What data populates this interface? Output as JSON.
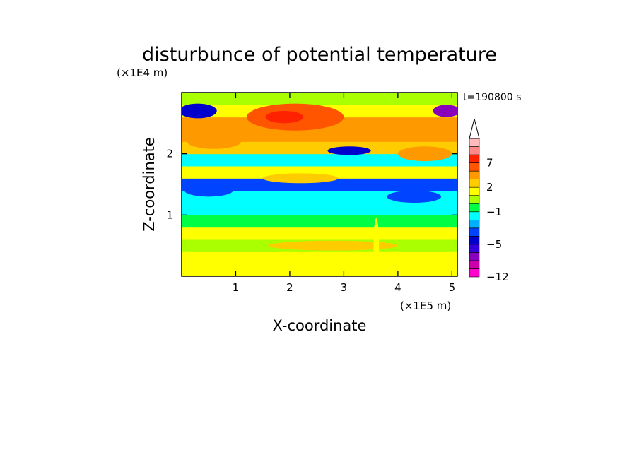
{
  "chart_data": {
    "type": "heatmap",
    "title": "disturbunce of potential temperature",
    "xlabel": "X-coordinate",
    "ylabel": "Z-coordinate",
    "x_unit": "(×1E5 m)",
    "y_unit": "(×1E4 m)",
    "time_label": "t=190800 s",
    "xlim": [
      0,
      5.1
    ],
    "ylim": [
      0,
      3.0
    ],
    "x_ticks": [
      1,
      2,
      3,
      4,
      5
    ],
    "x_tick_labels": [
      "1",
      "2",
      "3",
      "4",
      "5"
    ],
    "y_ticks": [
      1,
      2
    ],
    "y_tick_labels": [
      "1",
      "2"
    ],
    "colorbar": {
      "levels": [
        -12,
        -10,
        -8,
        -6,
        -5,
        -4,
        -3,
        -2,
        -1,
        0,
        1,
        2,
        3,
        5,
        7,
        9,
        11
      ],
      "level_labels": [
        {
          "value": 7,
          "text": "7"
        },
        {
          "value": 2,
          "text": "2"
        },
        {
          "value": -1,
          "text": "−1"
        },
        {
          "value": -5,
          "text": "−5"
        },
        {
          "value": -12,
          "text": "−12"
        }
      ],
      "colors": [
        "#ff00cc",
        "#cc00aa",
        "#8800bb",
        "#3300dd",
        "#0000cc",
        "#0044ff",
        "#00b0ff",
        "#00ffff",
        "#00ff44",
        "#aaff00",
        "#ffff00",
        "#ffcc00",
        "#ff9900",
        "#ff5500",
        "#ff2200",
        "#ff8888",
        "#ffbbbb"
      ],
      "extend_top": true
    },
    "bands": [
      {
        "z": 0.1,
        "level": 10
      },
      {
        "z": 0.3,
        "level": 10
      },
      {
        "z": 0.5,
        "level": 9
      },
      {
        "z": 0.7,
        "level": 10
      },
      {
        "z": 0.9,
        "level": 8
      },
      {
        "z": 1.1,
        "level": 7
      },
      {
        "z": 1.3,
        "level": 7
      },
      {
        "z": 1.5,
        "level": 5
      },
      {
        "z": 1.7,
        "level": 10
      },
      {
        "z": 1.9,
        "level": 7
      },
      {
        "z": 2.1,
        "level": 11
      },
      {
        "z": 2.3,
        "level": 12
      },
      {
        "z": 2.5,
        "level": 12
      },
      {
        "z": 2.7,
        "level": 10
      },
      {
        "z": 2.9,
        "level": 9
      }
    ],
    "features": [
      {
        "x": 0.6,
        "z": 2.2,
        "rx": 0.5,
        "rz": 0.12,
        "level": 12
      },
      {
        "x": 2.1,
        "z": 2.6,
        "rx": 0.9,
        "rz": 0.22,
        "level": 13
      },
      {
        "x": 1.9,
        "z": 2.6,
        "rx": 0.35,
        "rz": 0.1,
        "level": 14
      },
      {
        "x": 4.5,
        "z": 2.0,
        "rx": 0.5,
        "rz": 0.12,
        "level": 12
      },
      {
        "x": 3.1,
        "z": 2.05,
        "rx": 0.4,
        "rz": 0.07,
        "level": 4
      },
      {
        "x": 0.5,
        "z": 1.4,
        "rx": 0.45,
        "rz": 0.1,
        "level": 5
      },
      {
        "x": 4.3,
        "z": 1.3,
        "rx": 0.5,
        "rz": 0.1,
        "level": 5
      },
      {
        "x": 0.3,
        "z": 2.7,
        "rx": 0.35,
        "rz": 0.12,
        "level": 4
      },
      {
        "x": 4.9,
        "z": 2.7,
        "rx": 0.25,
        "rz": 0.1,
        "level": 2
      },
      {
        "x": 2.2,
        "z": 1.6,
        "rx": 0.7,
        "rz": 0.08,
        "level": 11
      },
      {
        "x": 2.8,
        "z": 0.5,
        "rx": 1.2,
        "rz": 0.08,
        "level": 11
      },
      {
        "x": 3.6,
        "z": 0.5,
        "rx": 0.05,
        "rz": 0.45,
        "level": 10
      }
    ]
  }
}
